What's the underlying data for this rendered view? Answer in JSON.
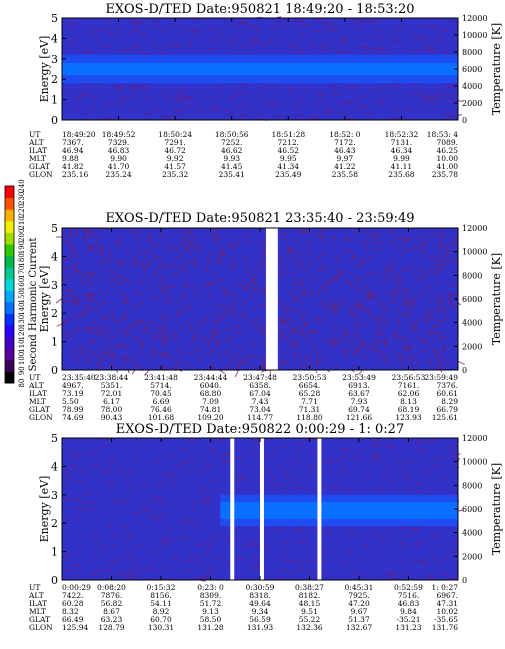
{
  "colorbar": {
    "label": "Second Harmonic Current",
    "ticks": [
      "80",
      "90",
      "100",
      "110",
      "120",
      "130",
      "140",
      "150",
      "160",
      "170",
      "180",
      "190",
      "200",
      "210",
      "220",
      "230",
      "240"
    ],
    "colors": [
      "#000000",
      "#3a0055",
      "#5a00a0",
      "#4400c8",
      "#2a00ff",
      "#0030ff",
      "#0070ff",
      "#00a8ff",
      "#00d8d8",
      "#00c890",
      "#00b84a",
      "#30c800",
      "#a0dc00",
      "#f0f000",
      "#ffb000",
      "#ff5000",
      "#ff0000"
    ]
  },
  "chart_data": [
    {
      "type": "heatmap",
      "title": "EXOS-D/TED   Date:950821  18:49:20 - 18:53:20",
      "ylabel": "Energy [eV]",
      "y2label": "Temperature [K]",
      "ylim": [
        0,
        5
      ],
      "yticks": [
        "0",
        "1",
        "2",
        "3",
        "4",
        "5"
      ],
      "y2lim": [
        0,
        12000
      ],
      "y2ticks": [
        "0",
        "2000",
        "4000",
        "6000",
        "8000",
        "10000",
        "12000"
      ],
      "gaps": [],
      "band": {
        "center": 2.5,
        "half": 0.3,
        "outer_half": 0.7
      },
      "orbit": {
        "labels": [
          "UT",
          "ALT",
          "ILAT",
          "MLT",
          "GLAT",
          "GLON"
        ],
        "columns": [
          [
            "18:49:20",
            "7367.",
            "46.94",
            "9.88",
            "41.82",
            "235.16"
          ],
          [
            "18:49:52",
            "7329.",
            "46.83",
            "9.90",
            "41.70",
            "235.24"
          ],
          [
            "18:50:24",
            "7291.",
            "46.72",
            "9.92",
            "41.57",
            "235.32"
          ],
          [
            "18:50:56",
            "7252.",
            "46.62",
            "9.93",
            "41.45",
            "235.41"
          ],
          [
            "18:51:28",
            "7212.",
            "46.52",
            "9.95",
            "41.34",
            "235.49"
          ],
          [
            "18:52: 0",
            "7172.",
            "46.43",
            "9.97",
            "41.22",
            "235.58"
          ],
          [
            "18:52:32",
            "7131.",
            "46.34",
            "9.99",
            "41.11",
            "235.68"
          ],
          [
            "18:53: 4",
            "7089.",
            "46.25",
            "10.00",
            "41.00",
            "235.78"
          ]
        ]
      }
    },
    {
      "type": "heatmap",
      "title": "EXOS-D/TED   Date:950821  23:35:40 - 23:59:49",
      "ylabel": "Energy [eV]",
      "y2label": "Temperature [K]",
      "ylim": [
        0,
        5
      ],
      "yticks": [
        "0",
        "1",
        "2",
        "3",
        "4",
        "5"
      ],
      "y2lim": [
        0,
        12000
      ],
      "y2ticks": [
        "0",
        "2000",
        "4000",
        "6000",
        "8000",
        "10000",
        "12000"
      ],
      "gaps": [
        [
          0.515,
          0.545
        ]
      ],
      "band": null,
      "orbit": {
        "labels": [
          "UT",
          "ALT",
          "ILAT",
          "MLT",
          "GLAT",
          "GLON"
        ],
        "columns": [
          [
            "23:35:40",
            "4967.",
            "73.19",
            "5.50",
            "78.99",
            "74.69"
          ],
          [
            "23:38:44",
            "5351.",
            "72.01",
            "6.17",
            "78.00",
            "90.43"
          ],
          [
            "23:41:48",
            "5714.",
            "70.45",
            "6.69",
            "76.46",
            "101.68"
          ],
          [
            "23:44:44",
            "6040.",
            "68.80",
            "7.09",
            "74.81",
            "109.20"
          ],
          [
            "23:47:48",
            "6358.",
            "67.04",
            "7.43",
            "73.04",
            "114.77"
          ],
          [
            "23:50:53",
            "6654.",
            "65.28",
            "7.71",
            "71.31",
            "118.80"
          ],
          [
            "23:53:49",
            "6913.",
            "63.67",
            "7.93",
            "69.74",
            "121.66"
          ],
          [
            "23:56:53",
            "7161.",
            "62.06",
            "8.13",
            "68.19",
            "123.93"
          ],
          [
            "23:59:49",
            "7376.",
            "60.61",
            "8.29",
            "66.79",
            "125.61"
          ]
        ]
      }
    },
    {
      "type": "heatmap",
      "title": "EXOS-D/TED   Date:950822  0:00:29 - 1: 0:27",
      "ylabel": "Energy [eV]",
      "y2label": "Temperature [K]",
      "ylim": [
        0,
        5
      ],
      "yticks": [
        "0",
        "1",
        "2",
        "3",
        "4",
        "5"
      ],
      "y2lim": [
        0,
        12000
      ],
      "y2ticks": [
        "0",
        "2000",
        "4000",
        "6000",
        "8000",
        "10000",
        "12000"
      ],
      "gaps": [
        [
          0.425,
          0.435
        ],
        [
          0.5,
          0.51
        ],
        [
          0.645,
          0.655
        ]
      ],
      "band": {
        "center": 2.45,
        "half": 0.3,
        "outer_half": 0.55,
        "start": 0.4
      },
      "orbit": {
        "labels": [
          "UT",
          "ALT",
          "ILAT",
          "MLT",
          "GLAT",
          "GLON"
        ],
        "columns": [
          [
            "0:00:29",
            "7422.",
            "60.28",
            "8.32",
            "66.49",
            "125.94"
          ],
          [
            "0:08:20",
            "7876.",
            "56.82",
            "8.67",
            "63.23",
            "128.79"
          ],
          [
            "0:15:32",
            "8156.",
            "54.11",
            "8.92",
            "60.70",
            "130.31"
          ],
          [
            "0:23: 0",
            "8309.",
            "51.72",
            "9.13",
            "58.50",
            "131.28"
          ],
          [
            "0:30:59",
            "8318.",
            "49.64",
            "9.34",
            "56.59",
            "131.93"
          ],
          [
            "0:38:27",
            "8182.",
            "48.15",
            "9.51",
            "55.22",
            "132.36"
          ],
          [
            "0:45:31",
            "7925.",
            "47.20",
            "9.67",
            "51.37",
            "132.67"
          ],
          [
            "0:52:59",
            "7516.",
            "46.83",
            "9.84",
            "-35.21",
            "131.23"
          ],
          [
            "1: 0:27",
            "6967.",
            "47.31",
            "10.02",
            "-35.65",
            "131.76"
          ]
        ]
      }
    }
  ]
}
